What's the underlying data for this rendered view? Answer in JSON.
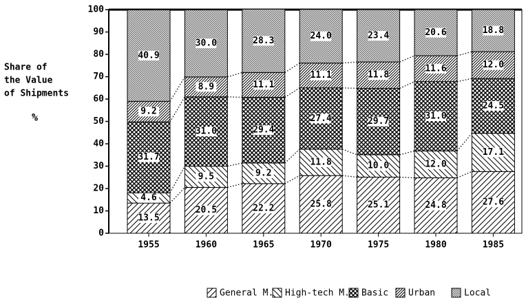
{
  "chart_data": {
    "type": "stacked_bar",
    "ylabel_lines": [
      "Share of",
      "the Value",
      "of Shipments"
    ],
    "yunit": "%",
    "categories": [
      "1955",
      "1960",
      "1965",
      "1970",
      "1975",
      "1980",
      "1985"
    ],
    "series": [
      {
        "name": "General M.",
        "color": "#000000",
        "pattern": "diagonal",
        "values": [
          13.5,
          20.5,
          22.2,
          25.8,
          25.1,
          24.8,
          27.6
        ],
        "value_labels": [
          "13.5",
          "20.5",
          "22.2",
          "25.8",
          "25.1",
          "24.8",
          "27.6"
        ]
      },
      {
        "name": "High-tech M.",
        "color": "#000000",
        "pattern": "backslash",
        "values": [
          4.6,
          9.5,
          9.2,
          11.8,
          10.0,
          12.0,
          17.1
        ],
        "value_labels": [
          "4.6",
          "9.5",
          "9.2",
          "11.8",
          "10.0",
          "12.0",
          "17.1"
        ]
      },
      {
        "name": "Basic",
        "color": "#000000",
        "pattern": "crosshatch",
        "values": [
          31.7,
          31.0,
          29.4,
          27.4,
          29.7,
          31.0,
          24.5
        ],
        "value_labels": [
          "31.7",
          "31.0",
          "29.4",
          "27.4",
          "29.7",
          "31.0",
          "24.5"
        ]
      },
      {
        "name": "Urban",
        "color": "#000000",
        "pattern": "dense-diagonal",
        "values": [
          9.2,
          8.9,
          11.1,
          11.1,
          11.8,
          11.6,
          12.0
        ],
        "value_labels": [
          "9.2",
          "8.9",
          "11.1",
          "11.1",
          "11.8",
          "11.6",
          "12.0"
        ]
      },
      {
        "name": "Local",
        "color": "#000000",
        "pattern": "dense-backslash",
        "values": [
          40.9,
          30.0,
          28.3,
          24.0,
          23.4,
          20.6,
          18.8
        ],
        "value_labels": [
          "40.9",
          "30.0",
          "28.3",
          "24.0",
          "23.4",
          "20.6",
          "18.8"
        ]
      }
    ],
    "ylim": [
      0,
      100
    ],
    "yticks": [
      0,
      10,
      20,
      30,
      40,
      50,
      60,
      70,
      80,
      90,
      100
    ]
  }
}
